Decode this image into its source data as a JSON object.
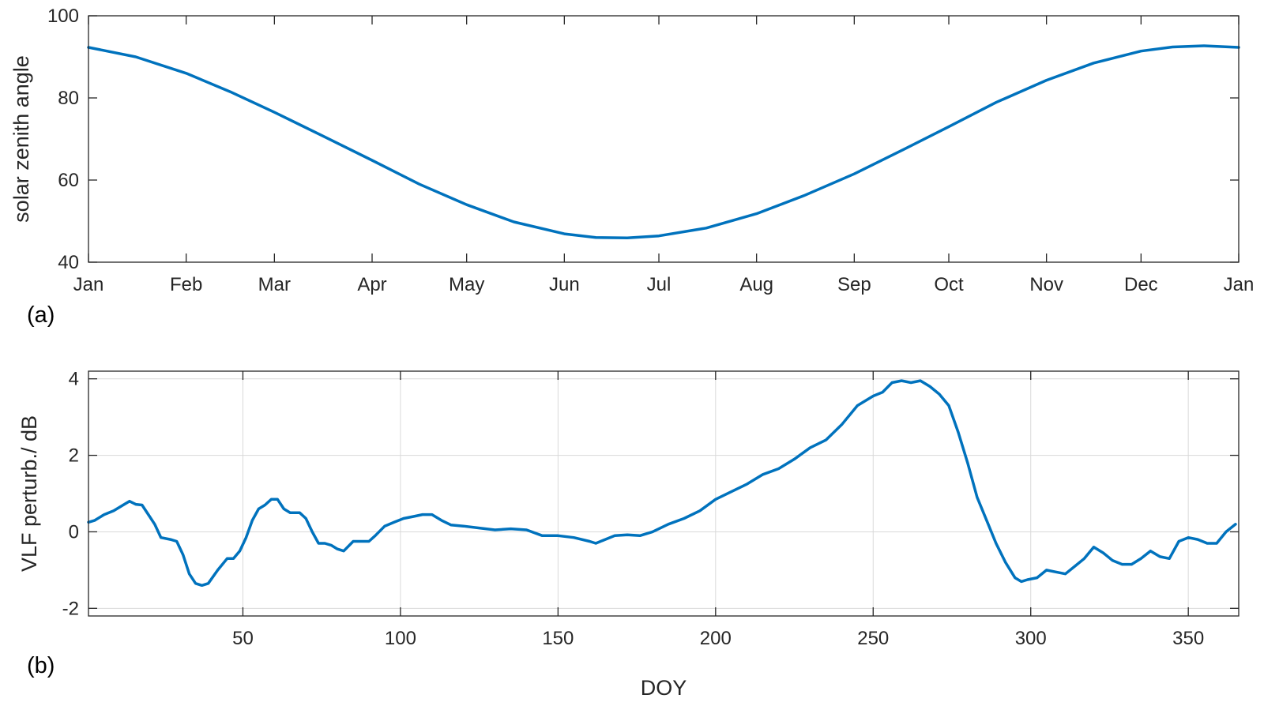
{
  "colors": {
    "series": "#0072bd",
    "axis": "#262626",
    "grid": "#d9d9d9"
  },
  "chart_data": [
    {
      "type": "line",
      "panel_label": "(a)",
      "xlabel": "",
      "ylabel": "solar zenith angle",
      "x_unit": "day of year",
      "xlim": [
        1,
        366
      ],
      "ylim": [
        40,
        100
      ],
      "grid": false,
      "x_ticks": [
        {
          "value": 1,
          "label": "Jan"
        },
        {
          "value": 32,
          "label": "Feb"
        },
        {
          "value": 60,
          "label": "Mar"
        },
        {
          "value": 91,
          "label": "Apr"
        },
        {
          "value": 121,
          "label": "May"
        },
        {
          "value": 152,
          "label": "Jun"
        },
        {
          "value": 182,
          "label": "Jul"
        },
        {
          "value": 213,
          "label": "Aug"
        },
        {
          "value": 244,
          "label": "Sep"
        },
        {
          "value": 274,
          "label": "Oct"
        },
        {
          "value": 305,
          "label": "Nov"
        },
        {
          "value": 335,
          "label": "Dec"
        },
        {
          "value": 366,
          "label": "Jan"
        }
      ],
      "y_ticks": [
        40,
        60,
        80,
        100
      ],
      "series": [
        {
          "x": [
            1,
            16,
            32,
            46,
            60,
            76,
            91,
            106,
            121,
            136,
            152,
            162,
            172,
            182,
            197,
            213,
            228,
            244,
            259,
            274,
            289,
            305,
            320,
            335,
            345,
            355,
            366
          ],
          "y": [
            92.3,
            90.0,
            86.0,
            81.5,
            76.5,
            70.5,
            64.8,
            59.0,
            54.0,
            49.8,
            46.9,
            46.0,
            45.9,
            46.4,
            48.3,
            51.8,
            56.2,
            61.5,
            67.2,
            73.0,
            78.9,
            84.3,
            88.5,
            91.4,
            92.4,
            92.7,
            92.3
          ]
        }
      ]
    },
    {
      "type": "line",
      "panel_label": "(b)",
      "xlabel": "DOY",
      "ylabel": "VLF perturb./ dB",
      "xlim": [
        1,
        366
      ],
      "ylim": [
        -2.2,
        4.2
      ],
      "grid": true,
      "x_ticks": [
        50,
        100,
        150,
        200,
        250,
        300,
        350
      ],
      "y_ticks": [
        -2,
        0,
        2,
        4
      ],
      "series": [
        {
          "x": [
            1,
            3,
            6,
            9,
            12,
            14,
            16,
            18,
            20,
            22,
            24,
            27,
            29,
            31,
            33,
            35,
            37,
            39,
            42,
            45,
            47,
            49,
            51,
            53,
            55,
            57,
            59,
            61,
            63,
            65,
            68,
            70,
            72,
            74,
            76,
            78,
            80,
            82,
            85,
            88,
            90,
            92,
            95,
            98,
            101,
            104,
            107,
            110,
            113,
            116,
            120,
            125,
            130,
            135,
            140,
            145,
            150,
            155,
            160,
            162,
            165,
            168,
            172,
            176,
            180,
            185,
            190,
            195,
            200,
            205,
            210,
            215,
            220,
            225,
            230,
            235,
            240,
            245,
            250,
            253,
            256,
            259,
            262,
            265,
            268,
            271,
            274,
            277,
            280,
            283,
            286,
            289,
            292,
            295,
            297,
            299,
            302,
            305,
            308,
            311,
            314,
            317,
            320,
            323,
            326,
            329,
            332,
            335,
            338,
            341,
            344,
            347,
            350,
            353,
            356,
            359,
            362,
            365
          ],
          "y": [
            0.25,
            0.3,
            0.45,
            0.55,
            0.7,
            0.8,
            0.72,
            0.7,
            0.45,
            0.2,
            -0.15,
            -0.2,
            -0.25,
            -0.6,
            -1.1,
            -1.35,
            -1.4,
            -1.35,
            -1.0,
            -0.7,
            -0.7,
            -0.5,
            -0.15,
            0.3,
            0.6,
            0.7,
            0.85,
            0.85,
            0.6,
            0.5,
            0.5,
            0.35,
            0.0,
            -0.3,
            -0.3,
            -0.35,
            -0.45,
            -0.5,
            -0.25,
            -0.25,
            -0.25,
            -0.1,
            0.15,
            0.25,
            0.35,
            0.4,
            0.45,
            0.45,
            0.3,
            0.18,
            0.15,
            0.1,
            0.05,
            0.08,
            0.05,
            -0.1,
            -0.1,
            -0.15,
            -0.25,
            -0.3,
            -0.2,
            -0.1,
            -0.08,
            -0.1,
            0.0,
            0.2,
            0.35,
            0.55,
            0.85,
            1.05,
            1.25,
            1.5,
            1.65,
            1.9,
            2.2,
            2.4,
            2.8,
            3.3,
            3.55,
            3.65,
            3.9,
            3.95,
            3.9,
            3.95,
            3.8,
            3.6,
            3.3,
            2.6,
            1.8,
            0.9,
            0.3,
            -0.3,
            -0.8,
            -1.2,
            -1.3,
            -1.25,
            -1.2,
            -1.0,
            -1.05,
            -1.1,
            -0.9,
            -0.7,
            -0.4,
            -0.55,
            -0.75,
            -0.85,
            -0.85,
            -0.7,
            -0.5,
            -0.65,
            -0.7,
            -0.25,
            -0.15,
            -0.2,
            -0.3,
            -0.3,
            0.0,
            0.2
          ]
        }
      ]
    }
  ]
}
